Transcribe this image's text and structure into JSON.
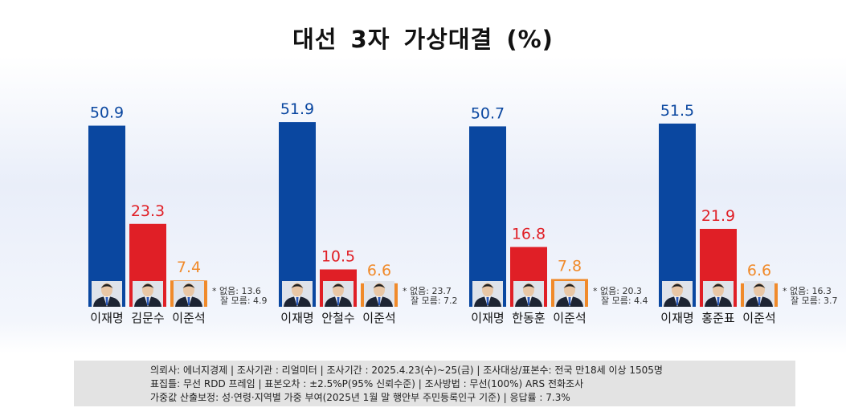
{
  "title": "대선  3자 가상대결 (%)",
  "colors": {
    "first": "#0a47a0",
    "second": "#e01f26",
    "third": "#f08a2a",
    "note": "#333333"
  },
  "chart_data": [
    {
      "type": "bar",
      "categories": [
        "이재명",
        "김문수",
        "이준석"
      ],
      "values": [
        50.9,
        23.3,
        7.4
      ],
      "value_labels": [
        "50.9",
        "23.3",
        "7.4"
      ],
      "notes": [
        "* 없음: 13.6",
        "잘 모름: 4.9"
      ],
      "ylim": [
        0,
        55
      ]
    },
    {
      "type": "bar",
      "categories": [
        "이재명",
        "안철수",
        "이준석"
      ],
      "values": [
        51.9,
        10.5,
        6.6
      ],
      "value_labels": [
        "51.9",
        "10.5",
        "6.6"
      ],
      "notes": [
        "* 없음: 23.7",
        "잘 모름: 7.2"
      ],
      "ylim": [
        0,
        55
      ]
    },
    {
      "type": "bar",
      "categories": [
        "이재명",
        "한동훈",
        "이준석"
      ],
      "values": [
        50.7,
        16.8,
        7.8
      ],
      "value_labels": [
        "50.7",
        "16.8",
        "7.8"
      ],
      "notes": [
        "* 없음: 20.3",
        "잘 모름: 4.4"
      ],
      "ylim": [
        0,
        55
      ]
    },
    {
      "type": "bar",
      "categories": [
        "이재명",
        "홍준표",
        "이준석"
      ],
      "values": [
        51.5,
        21.9,
        6.6
      ],
      "value_labels": [
        "51.5",
        "21.9",
        "6.6"
      ],
      "notes": [
        "* 없음: 16.3",
        "잘 모름: 3.7"
      ],
      "ylim": [
        0,
        55
      ]
    }
  ],
  "footer": {
    "line1": "의뢰사: 에너지경제 | 조사기관 : 리얼미터  |  조사기간 : 2025.4.23(수)~25(금) | 조사대상/표본수: 전국 만18세 이상 1505명",
    "line2": "표집틀: 무선 RDD 프레임 | 표본오차 : ±2.5%P(95% 신뢰수준) | 조사방법 : 무선(100%) ARS 전화조사",
    "line3": "가중값 산출보정: 성·연령·지역별 가중 부여(2025년 1월 말 행안부 주민등록인구 기준) | 응답률 : 7.3%"
  }
}
